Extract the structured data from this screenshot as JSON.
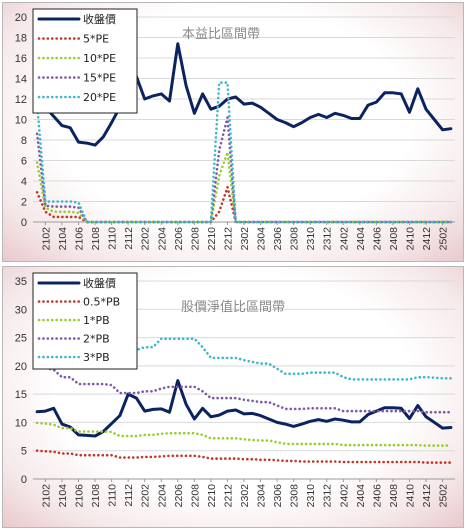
{
  "chart_data": [
    {
      "type": "line",
      "title": "本益比區間帶",
      "xlabel": "",
      "ylabel": "",
      "ylim": [
        0,
        20
      ],
      "yticks": [
        0,
        2,
        4,
        6,
        8,
        10,
        12,
        14,
        16,
        18,
        20
      ],
      "x_tick_labels": [
        "2102",
        "2104",
        "2106",
        "2108",
        "2110",
        "2112",
        "2202",
        "2204",
        "2206",
        "2208",
        "2210",
        "2212",
        "2302",
        "2304",
        "2306",
        "2308",
        "2310",
        "2312",
        "2402",
        "2404",
        "2406",
        "2408",
        "2410",
        "2412",
        "2502"
      ],
      "x": [
        "2101",
        "2102",
        "2103",
        "2104",
        "2105",
        "2106",
        "2107",
        "2108",
        "2109",
        "2110",
        "2111",
        "2112",
        "2201",
        "2202",
        "2203",
        "2204",
        "2205",
        "2206",
        "2207",
        "2208",
        "2209",
        "2210",
        "2211",
        "2212",
        "2301",
        "2302",
        "2303",
        "2304",
        "2305",
        "2306",
        "2307",
        "2308",
        "2309",
        "2310",
        "2311",
        "2312",
        "2401",
        "2402",
        "2403",
        "2404",
        "2405",
        "2406",
        "2407",
        "2408",
        "2409",
        "2410",
        "2411",
        "2412",
        "2501",
        "2502",
        "2503"
      ],
      "grid": true,
      "legend": "top-left",
      "series": [
        {
          "name": "收盤價",
          "color": "#0b2460",
          "style": "solid",
          "values": [
            11.5,
            11.2,
            10.3,
            9.4,
            9.2,
            7.8,
            7.7,
            7.5,
            8.3,
            9.7,
            11.2,
            15.0,
            14.2,
            12.0,
            12.3,
            12.5,
            11.8,
            17.4,
            13.3,
            10.6,
            12.5,
            11.0,
            11.3,
            12.0,
            12.2,
            11.5,
            11.6,
            11.2,
            10.6,
            10.0,
            9.7,
            9.3,
            9.7,
            10.2,
            10.5,
            10.2,
            10.6,
            10.4,
            10.1,
            10.1,
            11.4,
            11.7,
            12.6,
            12.6,
            12.5,
            10.7,
            13.0,
            11.0,
            10.0,
            9.0,
            9.1
          ]
        },
        {
          "name": "5*PE",
          "color": "#c0392b",
          "style": "dotted",
          "values": [
            2.9,
            1.0,
            0.5,
            0.5,
            0.5,
            0.5,
            0,
            0,
            0,
            0,
            0,
            0,
            0,
            0,
            0,
            0,
            0,
            0,
            0,
            0,
            0,
            0,
            1.0,
            3.4,
            0,
            0,
            0,
            0,
            0,
            0,
            0,
            0,
            0,
            0,
            0,
            0,
            0,
            0,
            0,
            0,
            0,
            0,
            0,
            0,
            0,
            0,
            0,
            0,
            0,
            0,
            0
          ]
        },
        {
          "name": "10*PE",
          "color": "#9acd32",
          "style": "dotted",
          "values": [
            5.8,
            1.4,
            1.0,
            1.0,
            1.0,
            0.9,
            0,
            0,
            0,
            0,
            0,
            0,
            0,
            0,
            0,
            0,
            0,
            0,
            0,
            0,
            0,
            0,
            4.5,
            6.8,
            0,
            0,
            0,
            0,
            0,
            0,
            0,
            0,
            0,
            0,
            0,
            0,
            0,
            0,
            0,
            0,
            0,
            0,
            0,
            0,
            0,
            0,
            0,
            0,
            0,
            0,
            0
          ]
        },
        {
          "name": "15*PE",
          "color": "#7d5ba6",
          "style": "dotted",
          "values": [
            8.6,
            1.6,
            1.5,
            1.5,
            1.5,
            1.4,
            0,
            0,
            0,
            0,
            0,
            0,
            0,
            0,
            0,
            0,
            0,
            0,
            0,
            0,
            0,
            0,
            7.0,
            10.2,
            0,
            0,
            0,
            0,
            0,
            0,
            0,
            0,
            0,
            0,
            0,
            0,
            0,
            0,
            0,
            0,
            0,
            0,
            0,
            0,
            0,
            0,
            0,
            0,
            0,
            0,
            0
          ]
        },
        {
          "name": "20*PE",
          "color": "#3fb8c9",
          "style": "dotted",
          "values": [
            11.5,
            2.0,
            2.0,
            2.0,
            2.0,
            1.9,
            0,
            0,
            0,
            0,
            0,
            0,
            0,
            0,
            0,
            0,
            0,
            0,
            0,
            0,
            0,
            0,
            13.6,
            13.6,
            0,
            0,
            0,
            0,
            0,
            0,
            0,
            0,
            0,
            0,
            0,
            0,
            0,
            0,
            0,
            0,
            0,
            0,
            0,
            0,
            0,
            0,
            0,
            0,
            0,
            0,
            0
          ]
        }
      ]
    },
    {
      "type": "line",
      "title": "股價淨值比區間帶",
      "xlabel": "",
      "ylabel": "",
      "ylim": [
        0,
        35
      ],
      "yticks": [
        0,
        5,
        10,
        15,
        20,
        25,
        30,
        35
      ],
      "x_tick_labels": [
        "2102",
        "2104",
        "2106",
        "2108",
        "2110",
        "2112",
        "2202",
        "2204",
        "2206",
        "2208",
        "2210",
        "2212",
        "2302",
        "2304",
        "2306",
        "2308",
        "2310",
        "2312",
        "2402",
        "2404",
        "2406",
        "2408",
        "2410",
        "2412",
        "2502"
      ],
      "x": [
        "2101",
        "2102",
        "2103",
        "2104",
        "2105",
        "2106",
        "2107",
        "2108",
        "2109",
        "2110",
        "2111",
        "2112",
        "2201",
        "2202",
        "2203",
        "2204",
        "2205",
        "2206",
        "2207",
        "2208",
        "2209",
        "2210",
        "2211",
        "2212",
        "2301",
        "2302",
        "2303",
        "2304",
        "2305",
        "2306",
        "2307",
        "2308",
        "2309",
        "2310",
        "2311",
        "2312",
        "2401",
        "2402",
        "2403",
        "2404",
        "2405",
        "2406",
        "2407",
        "2408",
        "2409",
        "2410",
        "2411",
        "2412",
        "2501",
        "2502",
        "2503"
      ],
      "grid": true,
      "legend": "top-left",
      "series": [
        {
          "name": "收盤價",
          "color": "#0b2460",
          "style": "solid",
          "values": [
            11.9,
            12.0,
            12.5,
            9.7,
            9.2,
            7.8,
            7.7,
            7.6,
            8.4,
            9.8,
            11.2,
            15.0,
            14.3,
            12.0,
            12.3,
            12.4,
            11.8,
            17.4,
            13.2,
            10.6,
            12.5,
            11.0,
            11.3,
            12.0,
            12.2,
            11.5,
            11.6,
            11.2,
            10.6,
            10.0,
            9.7,
            9.3,
            9.7,
            10.2,
            10.5,
            10.2,
            10.6,
            10.4,
            10.1,
            10.1,
            11.4,
            12.0,
            12.6,
            12.6,
            12.5,
            10.7,
            13.0,
            11.0,
            10.0,
            9.0,
            9.1
          ]
        },
        {
          "name": "0.5*PB",
          "color": "#c0392b",
          "style": "dotted",
          "values": [
            5.0,
            4.9,
            4.8,
            4.5,
            4.5,
            4.2,
            4.2,
            4.2,
            4.2,
            4.2,
            3.8,
            3.8,
            3.8,
            3.9,
            3.9,
            4.0,
            4.1,
            4.1,
            4.1,
            4.1,
            3.9,
            3.6,
            3.6,
            3.6,
            3.6,
            3.5,
            3.5,
            3.4,
            3.4,
            3.3,
            3.2,
            3.2,
            3.1,
            3.1,
            3.1,
            3.1,
            3.1,
            3.0,
            3.0,
            3.0,
            3.0,
            3.0,
            3.0,
            3.0,
            3.0,
            3.0,
            3.0,
            2.9,
            2.9,
            2.9,
            2.9
          ]
        },
        {
          "name": "1*PB",
          "color": "#9acd32",
          "style": "dotted",
          "values": [
            9.9,
            9.8,
            9.6,
            9.0,
            9.0,
            8.4,
            8.4,
            8.4,
            8.4,
            8.3,
            7.6,
            7.6,
            7.6,
            7.8,
            7.8,
            8.0,
            8.1,
            8.1,
            8.1,
            8.1,
            7.8,
            7.2,
            7.2,
            7.2,
            7.2,
            7.0,
            6.9,
            6.8,
            6.8,
            6.5,
            6.2,
            6.2,
            6.2,
            6.2,
            6.2,
            6.2,
            6.2,
            6.0,
            6.0,
            6.0,
            6.0,
            6.0,
            6.0,
            6.0,
            6.0,
            6.0,
            6.0,
            5.9,
            5.9,
            5.9,
            5.9
          ]
        },
        {
          "name": "2*PB",
          "color": "#7d5ba6",
          "style": "dotted",
          "values": [
            19.8,
            19.6,
            19.3,
            18.0,
            18.0,
            16.8,
            16.8,
            16.8,
            16.8,
            16.6,
            15.2,
            15.2,
            15.2,
            15.5,
            15.5,
            16.0,
            16.3,
            16.3,
            16.3,
            16.3,
            15.5,
            14.3,
            14.3,
            14.3,
            14.3,
            14.0,
            13.8,
            13.6,
            13.6,
            13.0,
            12.4,
            12.4,
            12.4,
            12.5,
            12.5,
            12.5,
            12.5,
            12.0,
            12.0,
            12.0,
            12.0,
            12.0,
            12.0,
            12.0,
            12.0,
            12.0,
            12.0,
            11.8,
            11.8,
            11.8,
            11.8
          ]
        },
        {
          "name": "3*PB",
          "color": "#3fb8c9",
          "style": "dotted",
          "values": [
            29.7,
            29.4,
            28.9,
            27.0,
            27.0,
            25.2,
            25.2,
            25.2,
            25.2,
            24.9,
            22.8,
            22.8,
            22.8,
            23.3,
            23.3,
            24.8,
            24.8,
            24.8,
            24.8,
            24.8,
            23.3,
            21.4,
            21.4,
            21.4,
            21.4,
            21.0,
            20.7,
            20.4,
            20.4,
            19.5,
            18.6,
            18.6,
            18.6,
            18.8,
            18.8,
            18.8,
            18.8,
            18.0,
            17.6,
            17.6,
            17.6,
            17.6,
            17.6,
            17.6,
            17.6,
            17.6,
            18.0,
            18.0,
            17.9,
            17.8,
            17.8
          ]
        }
      ]
    }
  ]
}
